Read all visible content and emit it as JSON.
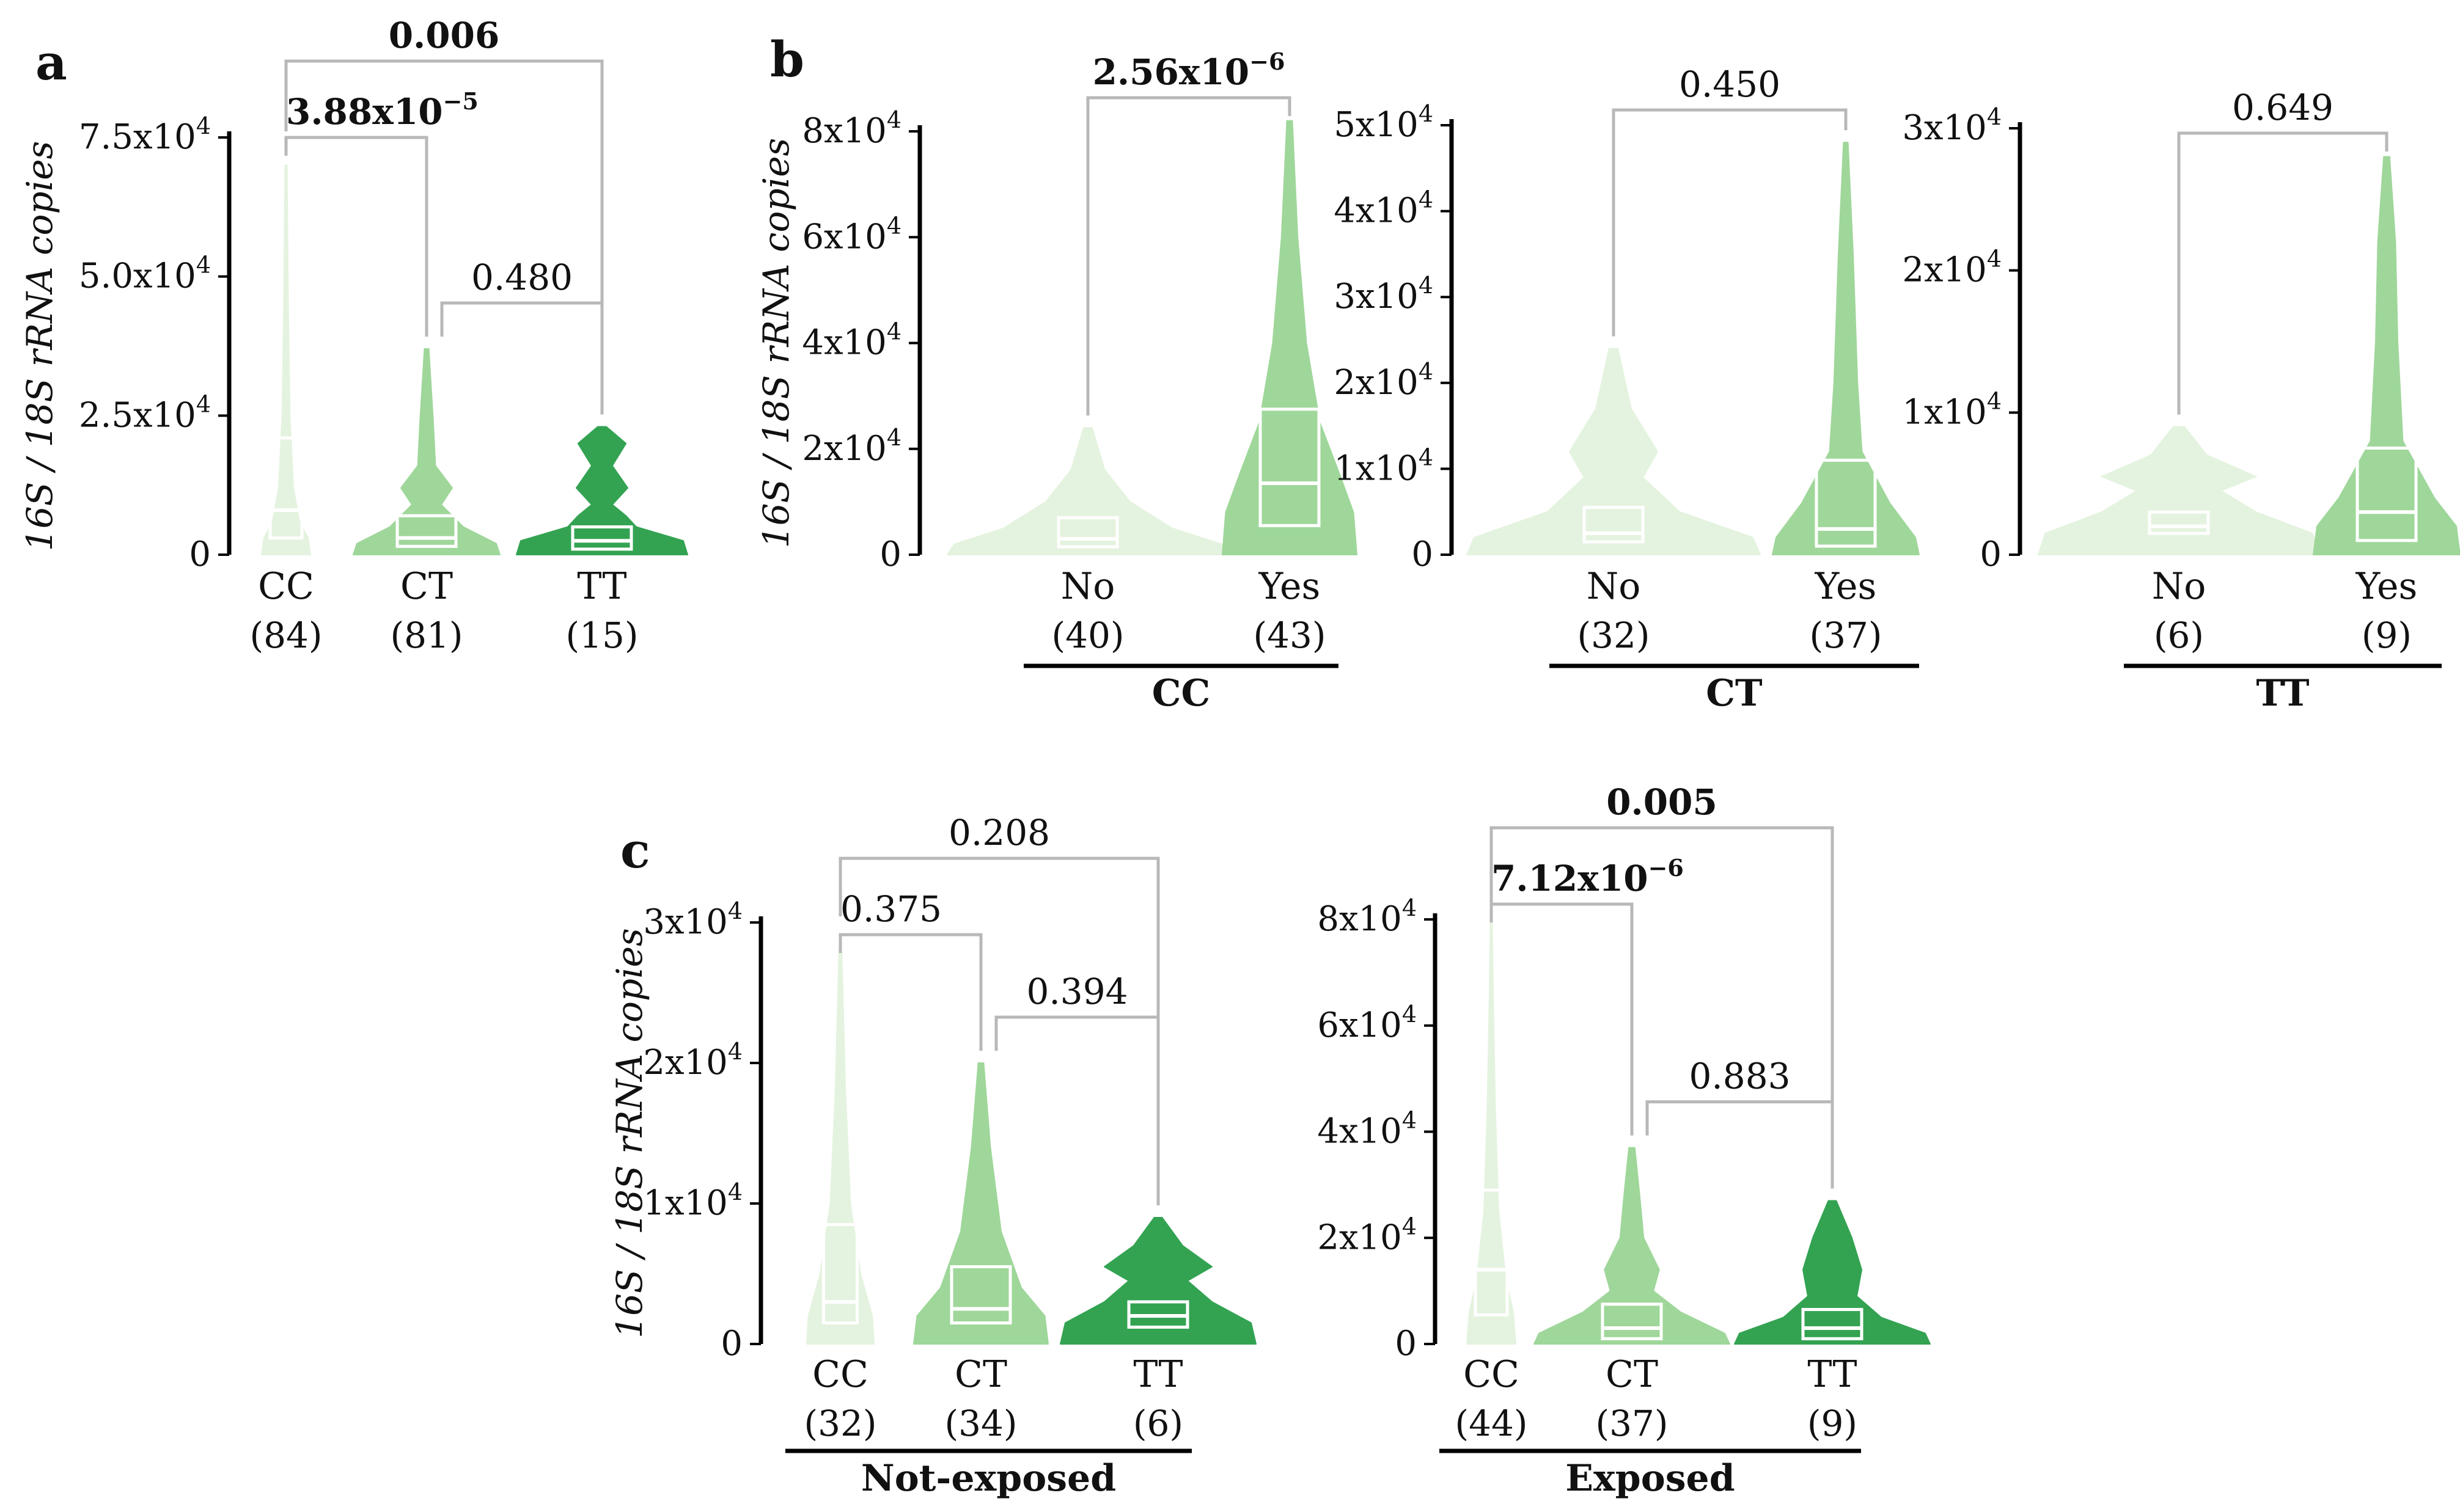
{
  "figure": {
    "panel_labels": {
      "a": "a",
      "b": "b",
      "c": "c"
    },
    "ylabel": "16S / 18S rRNA copies",
    "colors": {
      "light": "#e4f3df",
      "mid": "#9fd79a",
      "dark": "#33a352",
      "bracket": "#b8b8b8",
      "box": "#ffffff"
    }
  },
  "chart_data": [
    {
      "id": "a",
      "type": "violin",
      "ylabel": "16S / 18S rRNA copies",
      "ylim": [
        0,
        75000
      ],
      "yticks": [
        {
          "v": 0,
          "m": "0",
          "e": ""
        },
        {
          "v": 25000,
          "m": "2.5x10",
          "e": "4"
        },
        {
          "v": 50000,
          "m": "5.0x10",
          "e": "4"
        },
        {
          "v": 75000,
          "m": "7.5x10",
          "e": "4"
        }
      ],
      "group_label": "",
      "groups": [
        {
          "label": "CC",
          "n": "(84)",
          "color": "light",
          "max": 70000,
          "q1": 3000,
          "median": 8000,
          "q3": 21000,
          "prof": [
            [
              0,
              1
            ],
            [
              3000,
              0.9
            ],
            [
              6000,
              0.55
            ],
            [
              12000,
              0.3
            ],
            [
              25000,
              0.16
            ],
            [
              45000,
              0.09
            ],
            [
              70000,
              0.04
            ]
          ]
        },
        {
          "label": "CT",
          "n": "(81)",
          "color": "mid",
          "max": 37000,
          "q1": 1500,
          "median": 3000,
          "q3": 7000,
          "prof": [
            [
              0,
              1
            ],
            [
              2000,
              0.95
            ],
            [
              5000,
              0.5
            ],
            [
              9000,
              0.2
            ],
            [
              12000,
              0.35
            ],
            [
              16000,
              0.12
            ],
            [
              24000,
              0.09
            ],
            [
              37000,
              0.03
            ]
          ]
        },
        {
          "label": "TT",
          "n": "(15)",
          "color": "dark",
          "max": 23000,
          "q1": 1000,
          "median": 2500,
          "q3": 5000,
          "prof": [
            [
              0,
              1
            ],
            [
              2500,
              0.95
            ],
            [
              5000,
              0.4
            ],
            [
              7000,
              0.28
            ],
            [
              9000,
              0.12
            ],
            [
              12000,
              0.3
            ],
            [
              16000,
              0.12
            ],
            [
              20000,
              0.28
            ],
            [
              23000,
              0.05
            ]
          ]
        }
      ],
      "comparisons": [
        {
          "from": 0,
          "to": 2,
          "p": "0.006",
          "bold": true
        },
        {
          "from": 0,
          "to": 1,
          "p": "3.88x10",
          "e": "−5",
          "bold": true
        },
        {
          "from": 1,
          "to": 2,
          "p": "0.480",
          "bold": false
        }
      ]
    },
    {
      "id": "b1",
      "type": "violin",
      "ylabel": "16S / 18S rRNA copies",
      "ylim": [
        0,
        80000
      ],
      "yticks": [
        {
          "v": 0,
          "m": "0",
          "e": ""
        },
        {
          "v": 20000,
          "m": "2x10",
          "e": "4"
        },
        {
          "v": 40000,
          "m": "4x10",
          "e": "4"
        },
        {
          "v": 60000,
          "m": "6x10",
          "e": "4"
        },
        {
          "v": 80000,
          "m": "8x10",
          "e": "4"
        }
      ],
      "group_label": "CC",
      "groups": [
        {
          "label": "No",
          "n": "(40)",
          "color": "light",
          "max": 24000,
          "q1": 1500,
          "median": 3000,
          "q3": 7000,
          "prof": [
            [
              0,
              1
            ],
            [
              2000,
              0.95
            ],
            [
              5000,
              0.6
            ],
            [
              10000,
              0.3
            ],
            [
              16000,
              0.12
            ],
            [
              24000,
              0.03
            ]
          ]
        },
        {
          "label": "Yes",
          "n": "(43)",
          "color": "mid",
          "max": 82000,
          "q1": 5500,
          "median": 13500,
          "q3": 27500,
          "prof": [
            [
              0,
              1
            ],
            [
              8000,
              0.95
            ],
            [
              15000,
              0.75
            ],
            [
              25000,
              0.45
            ],
            [
              40000,
              0.25
            ],
            [
              60000,
              0.12
            ],
            [
              82000,
              0.04
            ]
          ]
        }
      ],
      "comparisons": [
        {
          "from": 0,
          "to": 1,
          "p": "2.56x10",
          "e": "−6",
          "bold": true
        }
      ]
    },
    {
      "id": "b2",
      "type": "violin",
      "ylim": [
        0,
        50000
      ],
      "yticks": [
        {
          "v": 0,
          "m": "0",
          "e": ""
        },
        {
          "v": 10000,
          "m": "1x10",
          "e": "4"
        },
        {
          "v": 20000,
          "m": "2x10",
          "e": "4"
        },
        {
          "v": 30000,
          "m": "3x10",
          "e": "4"
        },
        {
          "v": 40000,
          "m": "4x10",
          "e": "4"
        },
        {
          "v": 50000,
          "m": "5x10",
          "e": "4"
        }
      ],
      "group_label": "CT",
      "groups": [
        {
          "label": "No",
          "n": "(32)",
          "color": "light",
          "max": 24000,
          "q1": 1500,
          "median": 2500,
          "q3": 5500,
          "prof": [
            [
              0,
              1
            ],
            [
              2000,
              0.95
            ],
            [
              5000,
              0.45
            ],
            [
              9000,
              0.2
            ],
            [
              12000,
              0.3
            ],
            [
              17000,
              0.12
            ],
            [
              24000,
              0.03
            ]
          ]
        },
        {
          "label": "Yes",
          "n": "(37)",
          "color": "mid",
          "max": 48000,
          "q1": 1000,
          "median": 3000,
          "q3": 11000,
          "prof": [
            [
              0,
              1
            ],
            [
              2000,
              0.95
            ],
            [
              6000,
              0.6
            ],
            [
              12000,
              0.22
            ],
            [
              20000,
              0.16
            ],
            [
              35000,
              0.1
            ],
            [
              48000,
              0.03
            ]
          ]
        }
      ],
      "comparisons": [
        {
          "from": 0,
          "to": 1,
          "p": "0.450",
          "bold": false
        }
      ]
    },
    {
      "id": "b3",
      "type": "violin",
      "ylim": [
        0,
        30000
      ],
      "yticks": [
        {
          "v": 0,
          "m": "0",
          "e": ""
        },
        {
          "v": 10000,
          "m": "1x10",
          "e": "4"
        },
        {
          "v": 20000,
          "m": "2x10",
          "e": "4"
        },
        {
          "v": 30000,
          "m": "3x10",
          "e": "4"
        }
      ],
      "group_label": "TT",
      "groups": [
        {
          "label": "No",
          "n": "(6)",
          "color": "light",
          "max": 9000,
          "q1": 1500,
          "median": 2000,
          "q3": 3000,
          "prof": [
            [
              0,
              1
            ],
            [
              1500,
              0.95
            ],
            [
              3000,
              0.55
            ],
            [
              4500,
              0.3
            ],
            [
              5500,
              0.55
            ],
            [
              7000,
              0.2
            ],
            [
              9000,
              0.04
            ]
          ]
        },
        {
          "label": "Yes",
          "n": "(9)",
          "color": "mid",
          "max": 28000,
          "q1": 1000,
          "median": 3000,
          "q3": 7500,
          "prof": [
            [
              0,
              1
            ],
            [
              2000,
              0.95
            ],
            [
              4000,
              0.65
            ],
            [
              8000,
              0.22
            ],
            [
              15000,
              0.15
            ],
            [
              22000,
              0.12
            ],
            [
              28000,
              0.04
            ]
          ]
        }
      ],
      "comparisons": [
        {
          "from": 0,
          "to": 1,
          "p": "0.649",
          "bold": false
        }
      ]
    },
    {
      "id": "c1",
      "type": "violin",
      "ylabel": "16S / 18S rRNA copies",
      "ylim": [
        0,
        30000
      ],
      "yticks": [
        {
          "v": 0,
          "m": "0",
          "e": ""
        },
        {
          "v": 10000,
          "m": "1x10",
          "e": "4"
        },
        {
          "v": 20000,
          "m": "2x10",
          "e": "4"
        },
        {
          "v": 30000,
          "m": "3x10",
          "e": "4"
        }
      ],
      "group_label": "Not-exposed",
      "groups": [
        {
          "label": "CC",
          "n": "(32)",
          "color": "light",
          "max": 28000,
          "q1": 1500,
          "median": 3000,
          "q3": 8500,
          "prof": [
            [
              0,
              1
            ],
            [
              2000,
              0.95
            ],
            [
              5000,
              0.6
            ],
            [
              10000,
              0.3
            ],
            [
              18000,
              0.15
            ],
            [
              28000,
              0.04
            ]
          ]
        },
        {
          "label": "CT",
          "n": "(34)",
          "color": "mid",
          "max": 20000,
          "q1": 1500,
          "median": 2500,
          "q3": 5500,
          "prof": [
            [
              0,
              1
            ],
            [
              2000,
              0.95
            ],
            [
              4000,
              0.6
            ],
            [
              8000,
              0.3
            ],
            [
              14000,
              0.14
            ],
            [
              20000,
              0.04
            ]
          ]
        },
        {
          "label": "TT",
          "n": "(6)",
          "color": "dark",
          "max": 9000,
          "q1": 1200,
          "median": 2000,
          "q3": 3000,
          "prof": [
            [
              0,
              1
            ],
            [
              1500,
              0.95
            ],
            [
              3000,
              0.55
            ],
            [
              4500,
              0.3
            ],
            [
              5500,
              0.55
            ],
            [
              7000,
              0.25
            ],
            [
              9000,
              0.04
            ]
          ]
        }
      ],
      "comparisons": [
        {
          "from": 0,
          "to": 2,
          "p": "0.208",
          "bold": false
        },
        {
          "from": 0,
          "to": 1,
          "p": "0.375",
          "bold": false
        },
        {
          "from": 1,
          "to": 2,
          "p": "0.394",
          "bold": false
        }
      ]
    },
    {
      "id": "c2",
      "type": "violin",
      "ylim": [
        0,
        80000
      ],
      "yticks": [
        {
          "v": 0,
          "m": "0",
          "e": ""
        },
        {
          "v": 20000,
          "m": "2x10",
          "e": "4"
        },
        {
          "v": 40000,
          "m": "4x10",
          "e": "4"
        },
        {
          "v": 60000,
          "m": "6x10",
          "e": "4"
        },
        {
          "v": 80000,
          "m": "8x10",
          "e": "4"
        }
      ],
      "group_label": "Exposed",
      "groups": [
        {
          "label": "CC",
          "n": "(44)",
          "color": "light",
          "max": 80000,
          "q1": 5500,
          "median": 14000,
          "q3": 29000,
          "prof": [
            [
              0,
              1
            ],
            [
              6000,
              0.9
            ],
            [
              12000,
              0.6
            ],
            [
              25000,
              0.3
            ],
            [
              45000,
              0.16
            ],
            [
              65000,
              0.08
            ],
            [
              80000,
              0.03
            ]
          ]
        },
        {
          "label": "CT",
          "n": "(37)",
          "color": "mid",
          "max": 37000,
          "q1": 1000,
          "median": 3000,
          "q3": 7500,
          "prof": [
            [
              0,
              1
            ],
            [
              2000,
              0.95
            ],
            [
              6000,
              0.5
            ],
            [
              10000,
              0.22
            ],
            [
              14000,
              0.28
            ],
            [
              20000,
              0.12
            ],
            [
              28000,
              0.08
            ],
            [
              37000,
              0.03
            ]
          ]
        },
        {
          "label": "TT",
          "n": "(9)",
          "color": "dark",
          "max": 27000,
          "q1": 1000,
          "median": 3000,
          "q3": 6500,
          "prof": [
            [
              0,
              1
            ],
            [
              2000,
              0.95
            ],
            [
              5000,
              0.5
            ],
            [
              9000,
              0.25
            ],
            [
              14000,
              0.3
            ],
            [
              20000,
              0.2
            ],
            [
              27000,
              0.04
            ]
          ]
        }
      ],
      "comparisons": [
        {
          "from": 0,
          "to": 2,
          "p": "0.005",
          "bold": true
        },
        {
          "from": 0,
          "to": 1,
          "p": "7.12x10",
          "e": "−6",
          "bold": true
        },
        {
          "from": 1,
          "to": 2,
          "p": "0.883",
          "bold": false
        }
      ]
    }
  ]
}
